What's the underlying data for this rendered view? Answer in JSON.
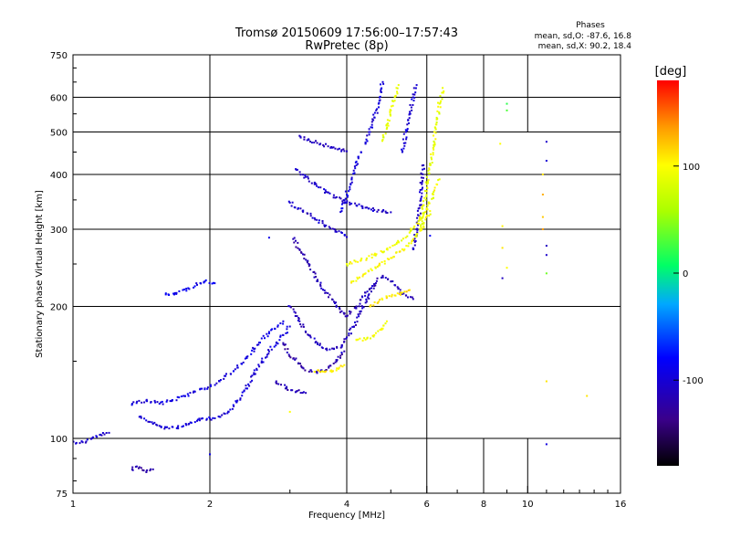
{
  "chart_data": {
    "type": "scatter",
    "title": "Tromsø 20150609 17:56:00–17:57:43",
    "subtitle": "RwPretec (8p)",
    "xlabel": "Frequency [MHz]",
    "ylabel": "Stationary phase Virtual Height [km]",
    "x_scale": "log",
    "y_scale": "log",
    "xlim": [
      1,
      16
    ],
    "ylim": [
      75,
      750
    ],
    "x_ticks": [
      1,
      2,
      4,
      6,
      8,
      10,
      16
    ],
    "x_tick_labels": [
      "1",
      "2",
      "4",
      "6",
      "8",
      "10",
      "16"
    ],
    "x_grid": [
      2,
      4,
      6
    ],
    "x_grid_short": [
      8,
      10
    ],
    "y_ticks": [
      75,
      100,
      200,
      300,
      400,
      500,
      600,
      750
    ],
    "y_tick_labels": [
      "75",
      "100",
      "200",
      "300",
      "400",
      "500",
      "600",
      "750"
    ],
    "y_grid": [
      100,
      200,
      300,
      400,
      500,
      600
    ],
    "phases": {
      "title": "Phases",
      "line_o": "mean, sd,O: -87.6, 16.8",
      "line_x": "mean, sd,X:  90.2, 18.4"
    },
    "colorbar": {
      "label": "[deg]",
      "range": [
        -180,
        180
      ],
      "ticks": [
        100,
        0,
        -100
      ],
      "tick_labels": [
        "100",
        "0",
        "-100"
      ]
    },
    "traces": [
      {
        "phase": -105,
        "points": [
          [
            1.0,
            98
          ],
          [
            1.05,
            98
          ],
          [
            1.1,
            100
          ],
          [
            1.15,
            102
          ],
          [
            1.2,
            103
          ]
        ]
      },
      {
        "phase": -100,
        "points": [
          [
            1.4,
            112
          ],
          [
            1.5,
            108
          ],
          [
            1.6,
            106
          ],
          [
            1.7,
            106
          ],
          [
            1.8,
            108
          ],
          [
            1.9,
            110
          ],
          [
            2.0,
            111
          ],
          [
            2.1,
            112
          ],
          [
            2.2,
            115
          ],
          [
            2.3,
            122
          ],
          [
            2.4,
            130
          ],
          [
            2.5,
            140
          ],
          [
            2.6,
            150
          ],
          [
            2.7,
            158
          ],
          [
            2.8,
            165
          ],
          [
            2.9,
            172
          ],
          [
            3.0,
            180
          ]
        ]
      },
      {
        "phase": -95,
        "points": [
          [
            1.35,
            120
          ],
          [
            1.45,
            122
          ],
          [
            1.55,
            120
          ],
          [
            1.65,
            122
          ],
          [
            1.75,
            125
          ],
          [
            1.85,
            128
          ],
          [
            1.95,
            130
          ],
          [
            2.1,
            135
          ],
          [
            2.3,
            145
          ],
          [
            2.5,
            160
          ],
          [
            2.7,
            175
          ],
          [
            2.9,
            185
          ]
        ]
      },
      {
        "phase": -90,
        "points": [
          [
            1.6,
            213
          ],
          [
            1.67,
            213
          ],
          [
            1.95,
            228
          ],
          [
            2.05,
            226
          ]
        ]
      },
      {
        "phase": -120,
        "points": [
          [
            1.35,
            85
          ],
          [
            1.4,
            86
          ],
          [
            1.45,
            84
          ],
          [
            1.5,
            85
          ]
        ]
      },
      {
        "phase": -115,
        "points": [
          [
            3.05,
            285
          ],
          [
            3.15,
            270
          ],
          [
            3.3,
            250
          ],
          [
            3.45,
            230
          ],
          [
            3.6,
            215
          ],
          [
            3.75,
            205
          ],
          [
            3.9,
            195
          ],
          [
            4.0,
            190
          ],
          [
            4.2,
            200
          ],
          [
            4.4,
            215
          ],
          [
            4.6,
            225
          ],
          [
            4.8,
            235
          ],
          [
            5.0,
            228
          ],
          [
            5.2,
            220
          ],
          [
            5.4,
            212
          ],
          [
            5.6,
            208
          ]
        ]
      },
      {
        "phase": -110,
        "points": [
          [
            3.0,
            200
          ],
          [
            3.15,
            185
          ],
          [
            3.3,
            172
          ],
          [
            3.45,
            165
          ],
          [
            3.6,
            160
          ],
          [
            3.75,
            160
          ],
          [
            3.9,
            163
          ],
          [
            4.0,
            170
          ],
          [
            4.15,
            180
          ],
          [
            4.3,
            195
          ],
          [
            4.45,
            210
          ],
          [
            4.6,
            225
          ]
        ]
      },
      {
        "phase": -120,
        "points": [
          [
            2.9,
            165
          ],
          [
            3.05,
            152
          ],
          [
            3.2,
            145
          ],
          [
            3.35,
            142
          ],
          [
            3.5,
            142
          ],
          [
            3.65,
            145
          ],
          [
            3.8,
            150
          ],
          [
            3.95,
            158
          ]
        ]
      },
      {
        "phase": -115,
        "points": [
          [
            2.8,
            135
          ],
          [
            2.95,
            130
          ],
          [
            3.1,
            128
          ],
          [
            3.25,
            127
          ]
        ]
      },
      {
        "phase": -110,
        "points": [
          [
            3.15,
            490
          ],
          [
            3.3,
            480
          ],
          [
            3.5,
            470
          ],
          [
            3.7,
            462
          ],
          [
            3.9,
            455
          ],
          [
            4.0,
            452
          ]
        ]
      },
      {
        "phase": -105,
        "points": [
          [
            3.1,
            410
          ],
          [
            3.25,
            395
          ],
          [
            3.4,
            380
          ],
          [
            3.6,
            365
          ],
          [
            3.8,
            355
          ],
          [
            4.0,
            345
          ],
          [
            4.2,
            340
          ],
          [
            4.4,
            336
          ],
          [
            4.6,
            332
          ],
          [
            4.8,
            330
          ],
          [
            5.0,
            328
          ]
        ]
      },
      {
        "phase": -105,
        "points": [
          [
            3.0,
            345
          ],
          [
            3.2,
            330
          ],
          [
            3.4,
            318
          ],
          [
            3.6,
            306
          ],
          [
            3.8,
            296
          ],
          [
            4.0,
            288
          ]
        ]
      },
      {
        "phase": -100,
        "points": [
          [
            4.4,
            470
          ],
          [
            4.5,
            500
          ],
          [
            4.6,
            540
          ],
          [
            4.7,
            580
          ],
          [
            4.75,
            620
          ],
          [
            4.8,
            650
          ]
        ]
      },
      {
        "phase": -100,
        "points": [
          [
            5.3,
            450
          ],
          [
            5.4,
            500
          ],
          [
            5.5,
            550
          ],
          [
            5.6,
            600
          ],
          [
            5.7,
            640
          ]
        ]
      },
      {
        "phase": -95,
        "points": [
          [
            3.9,
            330
          ],
          [
            4.0,
            360
          ],
          [
            4.1,
            390
          ],
          [
            4.2,
            420
          ],
          [
            4.3,
            450
          ]
        ]
      },
      {
        "phase": -110,
        "points": [
          [
            5.6,
            270
          ],
          [
            5.7,
            300
          ],
          [
            5.8,
            340
          ],
          [
            5.85,
            380
          ],
          [
            5.9,
            420
          ]
        ]
      },
      {
        "phase": 95,
        "points": [
          [
            4.0,
            250
          ],
          [
            4.3,
            255
          ],
          [
            4.6,
            262
          ],
          [
            4.9,
            270
          ],
          [
            5.2,
            280
          ],
          [
            5.5,
            295
          ],
          [
            5.8,
            315
          ],
          [
            6.0,
            335
          ],
          [
            6.2,
            360
          ],
          [
            6.4,
            390
          ]
        ]
      },
      {
        "phase": 100,
        "points": [
          [
            4.1,
            228
          ],
          [
            4.4,
            238
          ],
          [
            4.7,
            248
          ],
          [
            5.0,
            258
          ],
          [
            5.3,
            270
          ],
          [
            5.6,
            285
          ],
          [
            5.9,
            305
          ],
          [
            6.1,
            330
          ]
        ]
      },
      {
        "phase": 90,
        "points": [
          [
            5.8,
            300
          ],
          [
            5.9,
            340
          ],
          [
            6.0,
            380
          ],
          [
            6.1,
            420
          ],
          [
            6.2,
            460
          ],
          [
            6.3,
            520
          ],
          [
            6.4,
            580
          ],
          [
            6.5,
            630
          ]
        ]
      },
      {
        "phase": 90,
        "points": [
          [
            4.8,
            480
          ],
          [
            4.9,
            520
          ],
          [
            5.0,
            560
          ],
          [
            5.1,
            600
          ],
          [
            5.2,
            640
          ]
        ]
      },
      {
        "phase": 100,
        "points": [
          [
            4.2,
            168
          ],
          [
            4.4,
            168
          ],
          [
            4.6,
            172
          ],
          [
            4.8,
            178
          ],
          [
            4.9,
            185
          ]
        ]
      },
      {
        "phase": 105,
        "points": [
          [
            3.4,
            142
          ],
          [
            3.55,
            142
          ],
          [
            3.7,
            143
          ],
          [
            3.85,
            145
          ],
          [
            3.95,
            147
          ]
        ]
      },
      {
        "phase": 110,
        "points": [
          [
            4.5,
            200
          ],
          [
            4.7,
            205
          ],
          [
            4.9,
            210
          ],
          [
            5.1,
            212
          ],
          [
            5.3,
            215
          ],
          [
            5.5,
            218
          ]
        ]
      }
    ],
    "sparse_points": [
      {
        "x": 9.0,
        "y": 580,
        "phase": 20
      },
      {
        "x": 9.0,
        "y": 560,
        "phase": 30
      },
      {
        "x": 8.7,
        "y": 470,
        "phase": 100
      },
      {
        "x": 8.8,
        "y": 305,
        "phase": 105
      },
      {
        "x": 8.8,
        "y": 272,
        "phase": 110
      },
      {
        "x": 9.0,
        "y": 245,
        "phase": 100
      },
      {
        "x": 8.8,
        "y": 232,
        "phase": -110
      },
      {
        "x": 11.0,
        "y": 475,
        "phase": -105
      },
      {
        "x": 11.0,
        "y": 430,
        "phase": -100
      },
      {
        "x": 10.8,
        "y": 400,
        "phase": 110
      },
      {
        "x": 10.8,
        "y": 360,
        "phase": 130
      },
      {
        "x": 10.8,
        "y": 320,
        "phase": 120
      },
      {
        "x": 10.8,
        "y": 300,
        "phase": 135
      },
      {
        "x": 11.0,
        "y": 275,
        "phase": -110
      },
      {
        "x": 11.0,
        "y": 262,
        "phase": -105
      },
      {
        "x": 11.0,
        "y": 238,
        "phase": 40
      },
      {
        "x": 11.0,
        "y": 135,
        "phase": 110
      },
      {
        "x": 13.5,
        "y": 125,
        "phase": 110
      },
      {
        "x": 11.0,
        "y": 97,
        "phase": -95
      },
      {
        "x": 2.0,
        "y": 92,
        "phase": -90
      },
      {
        "x": 3.9,
        "y": 157,
        "phase": -95
      },
      {
        "x": 2.7,
        "y": 287,
        "phase": -90
      },
      {
        "x": 6.1,
        "y": 290,
        "phase": -80
      },
      {
        "x": 3.0,
        "y": 115,
        "phase": 100
      }
    ]
  }
}
